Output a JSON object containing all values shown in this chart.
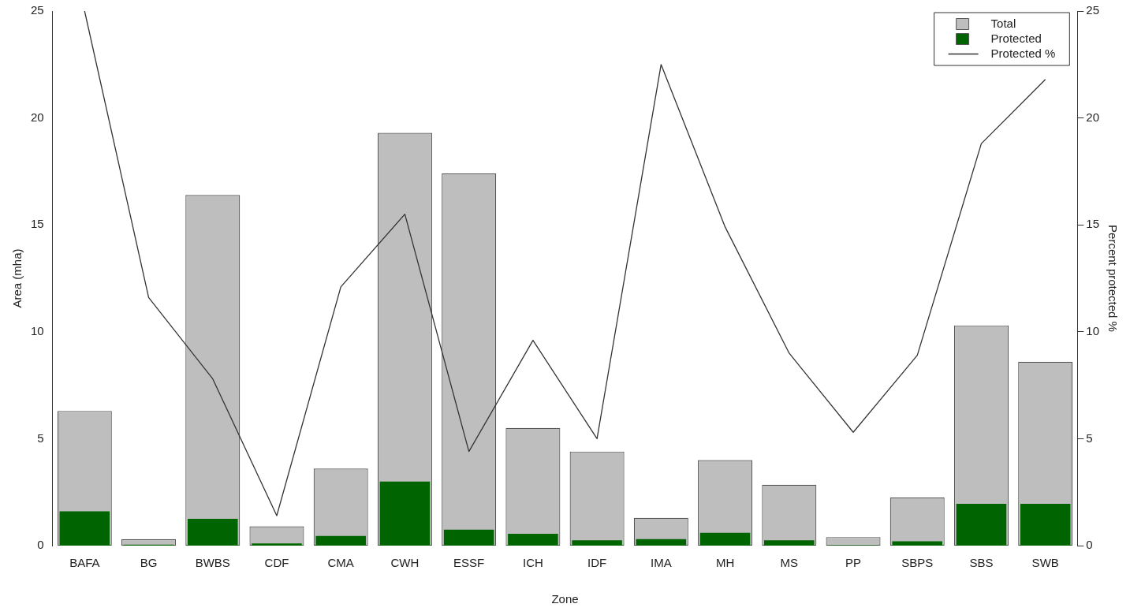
{
  "chart_data": {
    "type": "bar",
    "xlabel": "Zone",
    "ylabel": "Area (mha)",
    "y2label": "Percent protected %",
    "categories": [
      "BAFA",
      "BG",
      "BWBS",
      "CDF",
      "CMA",
      "CWH",
      "ESSF",
      "ICH",
      "IDF",
      "IMA",
      "MH",
      "MS",
      "PP",
      "SBPS",
      "SBS",
      "SWB"
    ],
    "series": [
      {
        "name": "Total",
        "color": "#bebebe",
        "values": [
          6.3,
          0.3,
          16.4,
          0.9,
          3.6,
          19.3,
          17.4,
          5.5,
          4.4,
          1.3,
          4.0,
          2.85,
          0.4,
          2.25,
          10.3,
          8.6
        ]
      },
      {
        "name": "Protected",
        "color": "#006400",
        "values": [
          1.6,
          0.05,
          1.25,
          0.1,
          0.45,
          3.0,
          0.75,
          0.55,
          0.25,
          0.3,
          0.6,
          0.25,
          0.02,
          0.2,
          1.95,
          1.95
        ]
      },
      {
        "name": "Protected %",
        "type": "line",
        "axis": "y2",
        "color": "#333333",
        "values": [
          25,
          11.6,
          7.8,
          1.4,
          12.1,
          15.5,
          4.4,
          9.6,
          5.0,
          22.5,
          14.9,
          9.0,
          5.3,
          8.9,
          18.8,
          21.8
        ]
      }
    ],
    "ylim": [
      0,
      25
    ],
    "yticks": [
      0,
      5,
      10,
      15,
      20,
      25
    ],
    "y2lim": [
      0,
      25
    ],
    "y2ticks": [
      0,
      5,
      10,
      15,
      20,
      25
    ],
    "legend": "top right",
    "marker": "none"
  }
}
